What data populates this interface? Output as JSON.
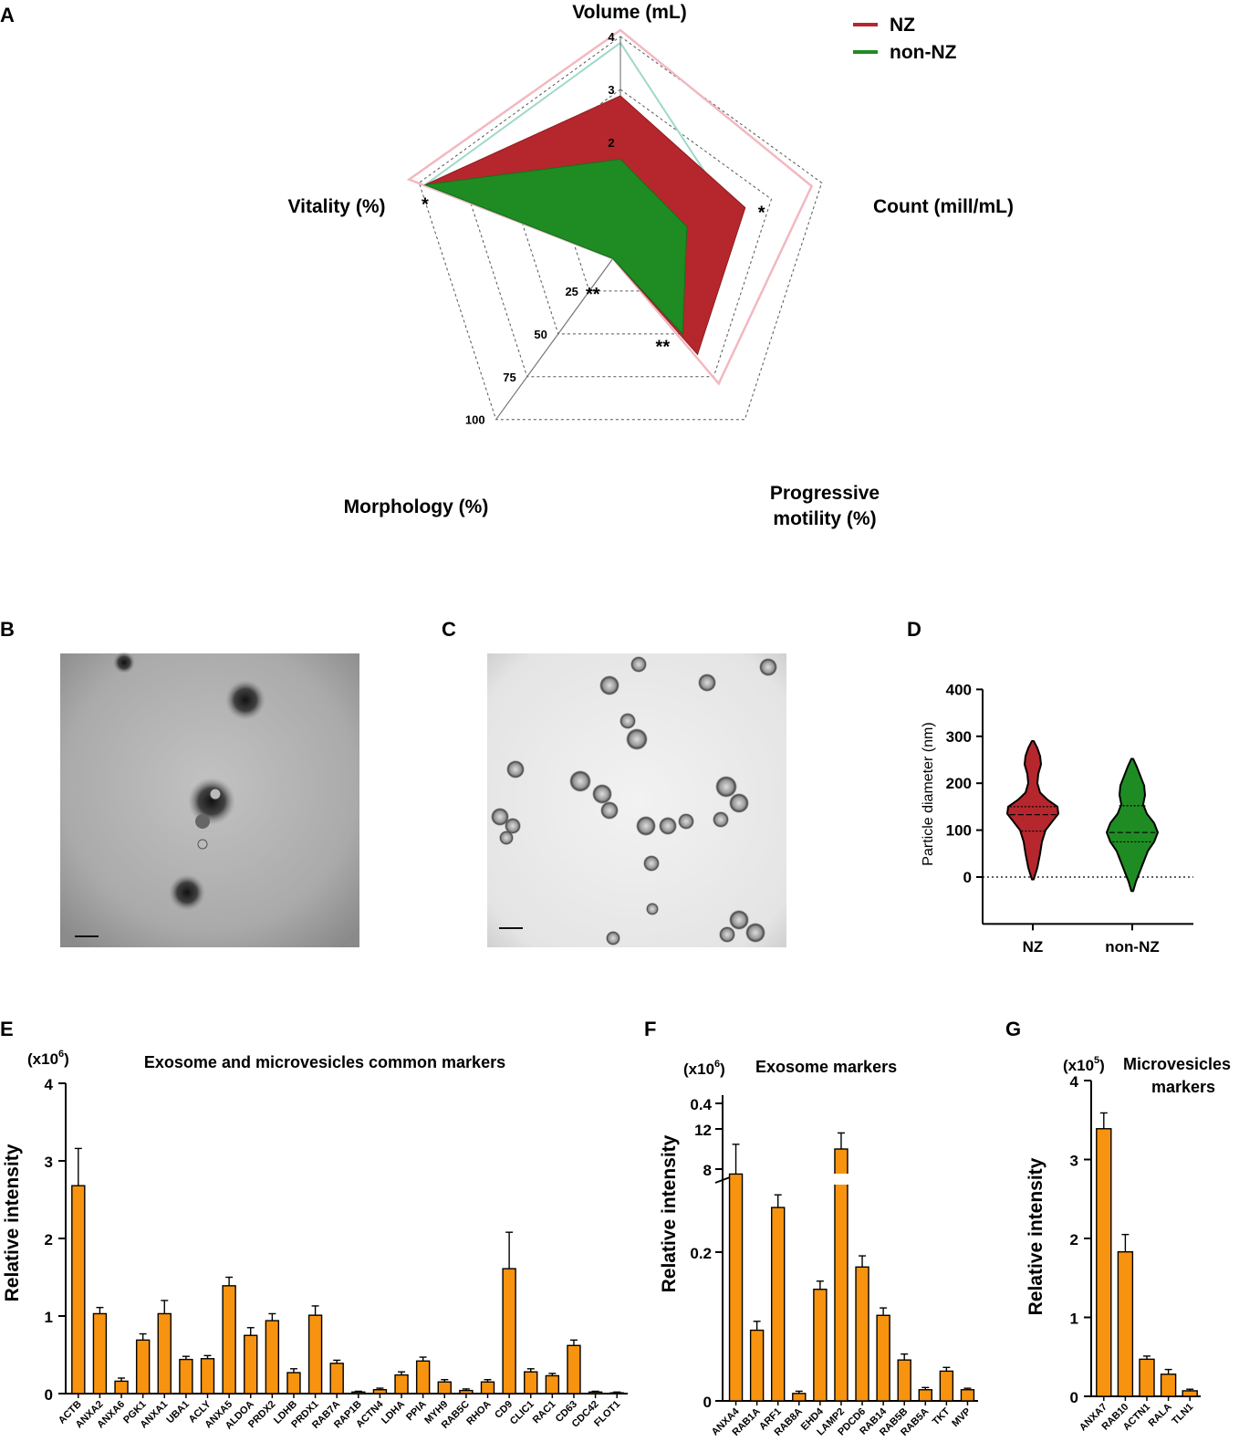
{
  "panel_labels": {
    "a": "A",
    "b": "B",
    "c": "C",
    "d": "D",
    "e": "E",
    "f": "F",
    "g": "G"
  },
  "colors": {
    "nz": "#b5272c",
    "non_nz": "#1e8c23",
    "bar": "#f7930e",
    "nz_outline": "#f2b8c0",
    "non_nz_outline": "#9ed9c8"
  },
  "chart_data": [
    {
      "type": "radar",
      "panel": "A",
      "axes": [
        "Volume (mL)",
        "Count (mill/mL)",
        "Progressive motility (%)",
        "Morphology (%)",
        "Vitality (%)"
      ],
      "axis_line2": {
        "progressive_1": "Progressive",
        "progressive_2": "motility (%)"
      },
      "rings": [
        0.25,
        0.5,
        0.75,
        1.0
      ],
      "volume_ticks": [
        "4",
        "3",
        "2"
      ],
      "morphology_ticks": [
        "25",
        "50",
        "75",
        "100"
      ],
      "legend": [
        "NZ",
        "non-NZ"
      ],
      "series": [
        {
          "name": "NZ",
          "values": [
            0.72,
            0.62,
            0.62,
            0.06,
            0.97
          ]
        },
        {
          "name": "non-NZ",
          "values": [
            0.42,
            0.33,
            0.5,
            0.06,
            0.97
          ]
        }
      ],
      "outline_series": [
        {
          "name": "NZ range",
          "values": [
            1.03,
            0.95,
            0.79,
            0.06,
            1.05
          ]
        },
        {
          "name": "non-NZ range",
          "values": [
            0.97,
            0.55,
            0.56,
            0.06,
            0.97
          ]
        }
      ],
      "significance": [
        {
          "axis": "Count (mill/mL)",
          "mark": "*"
        },
        {
          "axis": "Progressive motility (%)",
          "mark": "**"
        },
        {
          "axis": "Morphology (%)",
          "mark": "**"
        },
        {
          "axis": "Vitality (%)",
          "mark": "*"
        }
      ]
    },
    {
      "type": "violin",
      "panel": "D",
      "categories": [
        "NZ",
        "non-NZ"
      ],
      "ylabel": "Particle diameter (nm)",
      "ylim": [
        -100,
        400
      ],
      "yticks": [
        0,
        100,
        200,
        300,
        400
      ],
      "ytick_labels": [
        "0",
        "100",
        "200",
        "300",
        "400"
      ],
      "series": [
        {
          "name": "NZ",
          "min": -5,
          "max": 290,
          "median": 133,
          "q1": 98,
          "q3": 150
        },
        {
          "name": "non-NZ",
          "min": -30,
          "max": 252,
          "median": 95,
          "q1": 75,
          "q3": 152
        }
      ]
    },
    {
      "type": "bar",
      "panel": "E",
      "title": "Exosome and microvesicles common markers",
      "ylabel": "Relative intensity",
      "scale_label": "(x10",
      "scale_exp": "6",
      "scale_close": ")",
      "ylim": [
        0,
        4
      ],
      "yticks": [
        "0",
        "1",
        "2",
        "3",
        "4"
      ],
      "categories": [
        "ACTB",
        "ANXA2",
        "ANXA6",
        "PGK1",
        "ANXA1",
        "UBA1",
        "ACLY",
        "ANXA5",
        "ALDOA",
        "PRDX2",
        "LDHB",
        "PRDX1",
        "RAB7A",
        "RAP1B",
        "ACTN4",
        "LDHA",
        "PPIA",
        "MYH9",
        "RAB5C",
        "RHOA",
        "CD9",
        "CLIC1",
        "RAC1",
        "CD63",
        "CDC42",
        "FLOT1"
      ],
      "values": [
        2.68,
        1.03,
        0.16,
        0.69,
        1.03,
        0.44,
        0.45,
        1.39,
        0.75,
        0.94,
        0.27,
        1.01,
        0.39,
        0.02,
        0.05,
        0.24,
        0.42,
        0.15,
        0.04,
        0.15,
        1.61,
        0.28,
        0.23,
        0.62,
        0.02,
        0.01
      ],
      "errors": [
        0.48,
        0.08,
        0.04,
        0.08,
        0.17,
        0.04,
        0.04,
        0.11,
        0.1,
        0.09,
        0.05,
        0.12,
        0.04,
        0.01,
        0.02,
        0.04,
        0.05,
        0.03,
        0.02,
        0.03,
        0.47,
        0.04,
        0.03,
        0.07,
        0.01,
        0.01
      ]
    },
    {
      "type": "bar",
      "panel": "F",
      "title": "Exosome markers",
      "ylabel": "Relative intensity",
      "scale_label": "(x10",
      "scale_exp": "6",
      "scale_close": ")",
      "axis_break": true,
      "ylim_lower": [
        0,
        0.4
      ],
      "ylim_upper": [
        6,
        14
      ],
      "yticks_lower": [
        "0",
        "0.2",
        "0.4"
      ],
      "yticks_upper": [
        "8",
        "12"
      ],
      "categories": [
        "ANXA4",
        "RAB1A",
        "ARF1",
        "RAB8A",
        "EHD4",
        "LAMP2",
        "PDCD6",
        "RAB14",
        "RAB5B",
        "RAB5A",
        "TKT",
        "MVP"
      ],
      "values": [
        0.305,
        0.095,
        0.26,
        0.01,
        0.15,
        10.0,
        0.18,
        0.115,
        0.055,
        0.015,
        0.04,
        0.015
      ],
      "errors": [
        0.04,
        0.012,
        0.017,
        0.003,
        0.011,
        1.6,
        0.015,
        0.01,
        0.008,
        0.003,
        0.005,
        0.002
      ]
    },
    {
      "type": "bar",
      "panel": "G",
      "title": "Microvesicles markers",
      "title_line1": "Microvesicles",
      "title_line2": "markers",
      "ylabel": "Relative intensity",
      "scale_label": "(x10",
      "scale_exp": "5",
      "scale_close": ")",
      "ylim": [
        0,
        4
      ],
      "yticks": [
        "0",
        "1",
        "2",
        "3",
        "4"
      ],
      "categories": [
        "ANXA7",
        "RAB10",
        "ACTN1",
        "RALA",
        "TLN1"
      ],
      "values": [
        3.39,
        1.83,
        0.47,
        0.28,
        0.07
      ],
      "errors": [
        0.2,
        0.22,
        0.04,
        0.06,
        0.02
      ]
    }
  ]
}
